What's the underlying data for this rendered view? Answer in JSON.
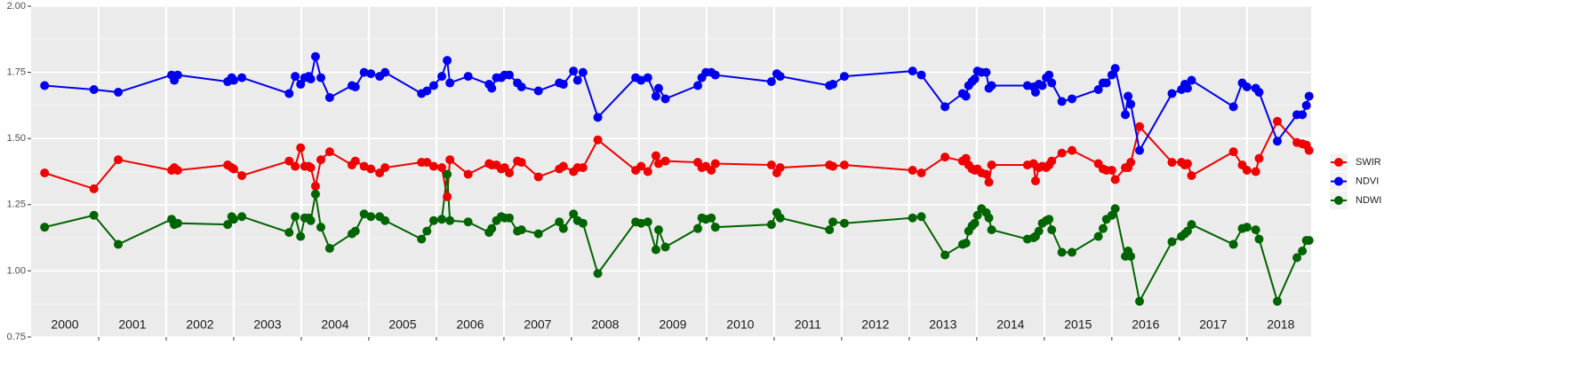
{
  "chart_data": {
    "type": "line",
    "x": [
      2000.2,
      2000.93,
      2001.29,
      2002.08,
      2002.12,
      2002.17,
      2002.91,
      2002.97,
      2003.0,
      2003.12,
      2003.82,
      2003.91,
      2003.99,
      2004.05,
      2004.11,
      2004.14,
      2004.21,
      2004.29,
      2004.42,
      2004.75,
      2004.8,
      2004.93,
      2005.03,
      2005.16,
      2005.24,
      2005.78,
      2005.86,
      2005.96,
      2006.08,
      2006.16,
      2006.2,
      2006.47,
      2006.78,
      2006.82,
      2006.89,
      2006.96,
      2007.01,
      2007.08,
      2007.2,
      2007.26,
      2007.51,
      2007.82,
      2007.88,
      2008.03,
      2008.09,
      2008.17,
      2008.39,
      2008.95,
      2009.03,
      2009.13,
      2009.25,
      2009.29,
      2009.39,
      2009.87,
      2009.93,
      2009.99,
      2010.07,
      2010.13,
      2010.96,
      2011.04,
      2011.09,
      2011.82,
      2011.87,
      2012.04,
      2013.05,
      2013.18,
      2013.53,
      2013.79,
      2013.84,
      2013.88,
      2013.93,
      2013.97,
      2014.01,
      2014.07,
      2014.14,
      2014.18,
      2014.22,
      2014.75,
      2014.84,
      2014.87,
      2014.92,
      2014.97,
      2015.03,
      2015.07,
      2015.11,
      2015.26,
      2015.41,
      2015.8,
      2015.87,
      2015.92,
      2016.0,
      2016.05,
      2016.2,
      2016.24,
      2016.28,
      2016.41,
      2016.89,
      2017.03,
      2017.08,
      2017.12,
      2017.18,
      2017.8,
      2017.93,
      2018.0,
      2018.13,
      2018.18,
      2018.45,
      2018.74,
      2018.82,
      2018.88,
      2018.92
    ],
    "series": [
      {
        "name": "SWIR",
        "color": "#f00000",
        "values": [
          1.37,
          1.31,
          1.42,
          1.38,
          1.39,
          1.38,
          1.4,
          1.39,
          1.385,
          1.36,
          1.415,
          1.395,
          1.465,
          1.395,
          1.395,
          1.39,
          1.32,
          1.42,
          1.45,
          1.4,
          1.415,
          1.395,
          1.385,
          1.37,
          1.39,
          1.41,
          1.41,
          1.395,
          1.39,
          1.28,
          1.42,
          1.365,
          1.405,
          1.4,
          1.4,
          1.385,
          1.39,
          1.37,
          1.415,
          1.41,
          1.355,
          1.385,
          1.395,
          1.375,
          1.39,
          1.39,
          1.495,
          1.38,
          1.395,
          1.375,
          1.435,
          1.405,
          1.415,
          1.41,
          1.39,
          1.395,
          1.38,
          1.405,
          1.4,
          1.37,
          1.39,
          1.4,
          1.395,
          1.4,
          1.38,
          1.37,
          1.43,
          1.415,
          1.425,
          1.4,
          1.385,
          1.38,
          1.385,
          1.37,
          1.365,
          1.335,
          1.4,
          1.4,
          1.405,
          1.34,
          1.39,
          1.395,
          1.39,
          1.4,
          1.415,
          1.445,
          1.455,
          1.405,
          1.385,
          1.38,
          1.38,
          1.345,
          1.39,
          1.39,
          1.41,
          1.545,
          1.41,
          1.41,
          1.4,
          1.405,
          1.36,
          1.45,
          1.4,
          1.38,
          1.375,
          1.425,
          1.565,
          1.485,
          1.48,
          1.475,
          1.455
        ]
      },
      {
        "name": "NDVI",
        "color": "#0000f0",
        "values": [
          1.7,
          1.685,
          1.675,
          1.74,
          1.72,
          1.74,
          1.715,
          1.73,
          1.72,
          1.73,
          1.67,
          1.735,
          1.705,
          1.73,
          1.735,
          1.725,
          1.81,
          1.73,
          1.655,
          1.7,
          1.695,
          1.75,
          1.745,
          1.735,
          1.75,
          1.67,
          1.68,
          1.7,
          1.735,
          1.795,
          1.71,
          1.735,
          1.705,
          1.69,
          1.73,
          1.73,
          1.74,
          1.74,
          1.71,
          1.695,
          1.68,
          1.71,
          1.705,
          1.755,
          1.72,
          1.75,
          1.58,
          1.73,
          1.72,
          1.73,
          1.66,
          1.69,
          1.65,
          1.7,
          1.73,
          1.75,
          1.75,
          1.74,
          1.715,
          1.745,
          1.735,
          1.7,
          1.705,
          1.735,
          1.755,
          1.74,
          1.62,
          1.67,
          1.66,
          1.7,
          1.715,
          1.725,
          1.755,
          1.75,
          1.75,
          1.69,
          1.7,
          1.7,
          1.695,
          1.675,
          1.705,
          1.7,
          1.73,
          1.74,
          1.71,
          1.64,
          1.65,
          1.685,
          1.71,
          1.71,
          1.74,
          1.765,
          1.59,
          1.66,
          1.63,
          1.455,
          1.67,
          1.685,
          1.705,
          1.69,
          1.72,
          1.62,
          1.71,
          1.695,
          1.69,
          1.675,
          1.49,
          1.59,
          1.59,
          1.625,
          1.66
        ]
      },
      {
        "name": "NDWI",
        "color": "#006400",
        "values": [
          1.165,
          1.21,
          1.1,
          1.195,
          1.175,
          1.18,
          1.175,
          1.205,
          1.195,
          1.205,
          1.145,
          1.205,
          1.13,
          1.2,
          1.2,
          1.19,
          1.29,
          1.165,
          1.085,
          1.14,
          1.15,
          1.215,
          1.205,
          1.205,
          1.19,
          1.12,
          1.15,
          1.19,
          1.195,
          1.365,
          1.19,
          1.185,
          1.145,
          1.16,
          1.19,
          1.205,
          1.2,
          1.2,
          1.15,
          1.155,
          1.14,
          1.185,
          1.16,
          1.215,
          1.19,
          1.18,
          0.99,
          1.185,
          1.18,
          1.185,
          1.08,
          1.155,
          1.09,
          1.16,
          1.2,
          1.195,
          1.2,
          1.165,
          1.175,
          1.22,
          1.2,
          1.155,
          1.185,
          1.18,
          1.2,
          1.205,
          1.06,
          1.1,
          1.105,
          1.15,
          1.17,
          1.18,
          1.21,
          1.235,
          1.22,
          1.2,
          1.155,
          1.12,
          1.125,
          1.13,
          1.15,
          1.18,
          1.19,
          1.195,
          1.155,
          1.07,
          1.07,
          1.13,
          1.16,
          1.195,
          1.21,
          1.235,
          1.055,
          1.075,
          1.055,
          0.885,
          1.11,
          1.13,
          1.14,
          1.15,
          1.175,
          1.1,
          1.16,
          1.165,
          1.155,
          1.12,
          0.885,
          1.05,
          1.075,
          1.115,
          1.115
        ]
      }
    ],
    "xlim": [
      2000,
      2018.95
    ],
    "xticks": [
      2001,
      2002,
      2003,
      2004,
      2005,
      2006,
      2007,
      2008,
      2009,
      2010,
      2011,
      2012,
      2013,
      2014,
      2015,
      2016,
      2017,
      2018
    ],
    "year_labels": [
      {
        "value": 2000.5,
        "label": "2000"
      },
      {
        "value": 2001.5,
        "label": "2001"
      },
      {
        "value": 2002.5,
        "label": "2002"
      },
      {
        "value": 2003.5,
        "label": "2003"
      },
      {
        "value": 2004.5,
        "label": "2004"
      },
      {
        "value": 2005.5,
        "label": "2005"
      },
      {
        "value": 2006.5,
        "label": "2006"
      },
      {
        "value": 2007.5,
        "label": "2007"
      },
      {
        "value": 2008.5,
        "label": "2008"
      },
      {
        "value": 2009.5,
        "label": "2009"
      },
      {
        "value": 2010.5,
        "label": "2010"
      },
      {
        "value": 2011.5,
        "label": "2011"
      },
      {
        "value": 2012.5,
        "label": "2012"
      },
      {
        "value": 2013.5,
        "label": "2013"
      },
      {
        "value": 2014.5,
        "label": "2014"
      },
      {
        "value": 2015.5,
        "label": "2015"
      },
      {
        "value": 2016.5,
        "label": "2016"
      },
      {
        "value": 2017.5,
        "label": "2017"
      },
      {
        "value": 2018.5,
        "label": "2018"
      }
    ],
    "ylim": [
      0.75,
      2.0
    ],
    "yticks": [
      {
        "value": 0.75,
        "label": "0.75"
      },
      {
        "value": 1.0,
        "label": "1.00"
      },
      {
        "value": 1.25,
        "label": "1.25"
      },
      {
        "value": 1.5,
        "label": "1.50"
      },
      {
        "value": 1.75,
        "label": "1.75"
      },
      {
        "value": 2.0,
        "label": "2.00"
      }
    ],
    "yminor": [
      0.875,
      1.125,
      1.375,
      1.625,
      1.875
    ],
    "grid": true,
    "legend": "right"
  }
}
